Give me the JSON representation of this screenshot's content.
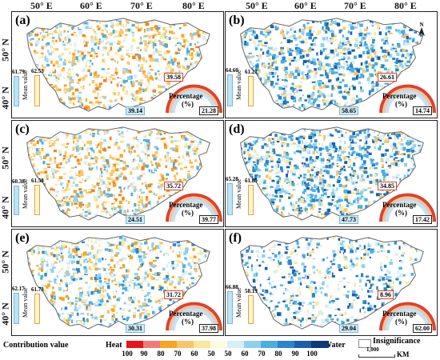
{
  "axes": {
    "longitudes": [
      "50° E",
      "60° E",
      "70° E",
      "80° E"
    ],
    "latitudes": [
      "50° N",
      "40° N"
    ]
  },
  "panels": [
    {
      "label": "(a)",
      "mean_title": "Mean value",
      "water_mean": "61.79",
      "heat_mean": "62.53",
      "water_level": 0.6179,
      "heat_level": 0.6253,
      "heat_pct": "39.58",
      "water_pct": "39.14",
      "insig_pct": "21.28",
      "pct_title": "Percentage",
      "pct_unit": "(%)",
      "style": "warm"
    },
    {
      "label": "(b)",
      "mean_title": "Mean value",
      "water_mean": "64.60",
      "heat_mean": "61.21",
      "water_level": 0.646,
      "heat_level": 0.6121,
      "heat_pct": "26.61",
      "water_pct": "58.65",
      "insig_pct": "14.74",
      "pct_title": "Percentage",
      "pct_unit": "(%)",
      "style": "cool"
    },
    {
      "label": "(c)",
      "mean_title": "Mean value",
      "water_mean": "60.38",
      "heat_mean": "61.58",
      "water_level": 0.6038,
      "heat_level": 0.6158,
      "heat_pct": "35.72",
      "water_pct": "24.51",
      "insig_pct": "39.77",
      "pct_title": "Percentage",
      "pct_unit": "(%)",
      "style": "warm"
    },
    {
      "label": "(d)",
      "mean_title": "Mean value",
      "water_mean": "65.28",
      "heat_mean": "61.85",
      "water_level": 0.6528,
      "heat_level": 0.6185,
      "heat_pct": "34.85",
      "water_pct": "47.73",
      "insig_pct": "17.42",
      "pct_title": "Percentage",
      "pct_unit": "(%)",
      "style": "cool"
    },
    {
      "label": "(e)",
      "mean_title": "Mean value",
      "water_mean": "62.17",
      "heat_mean": "61.73",
      "water_level": 0.6217,
      "heat_level": 0.6173,
      "heat_pct": "31.72",
      "water_pct": "30.31",
      "insig_pct": "37.98",
      "pct_title": "Percentage",
      "pct_unit": "(%)",
      "style": "mixed"
    },
    {
      "label": "(f)",
      "mean_title": "Mean value",
      "water_mean": "66.88",
      "heat_mean": "58.19",
      "water_level": 0.6688,
      "heat_level": 0.5819,
      "heat_pct": "8.96",
      "water_pct": "29.04",
      "insig_pct": "62.00",
      "pct_title": "Percentage",
      "pct_unit": "(%)",
      "style": "sparse"
    }
  ],
  "legend": {
    "title": "Contribution value",
    "heat_label": "Heat",
    "water_label": "Water",
    "ticks": [
      "100",
      "90",
      "80",
      "70",
      "60",
      "50",
      "50",
      "60",
      "70",
      "80",
      "90",
      "100"
    ],
    "colors": [
      "#e8141a",
      "#f07a7a",
      "#f5a623",
      "#f7c66b",
      "#fbe79b",
      "#fffbe0",
      "#d4eefa",
      "#8fd0ef",
      "#4aaee0",
      "#2a86c9",
      "#1a5fa8",
      "#0d3a7a"
    ],
    "insignificance_label": "Insignificance",
    "scale_value": "1,000",
    "scale_unit": "KM"
  },
  "colors": {
    "heat": "#e8a33a",
    "water": "#5bb4e5",
    "insig": "#ffffff"
  }
}
